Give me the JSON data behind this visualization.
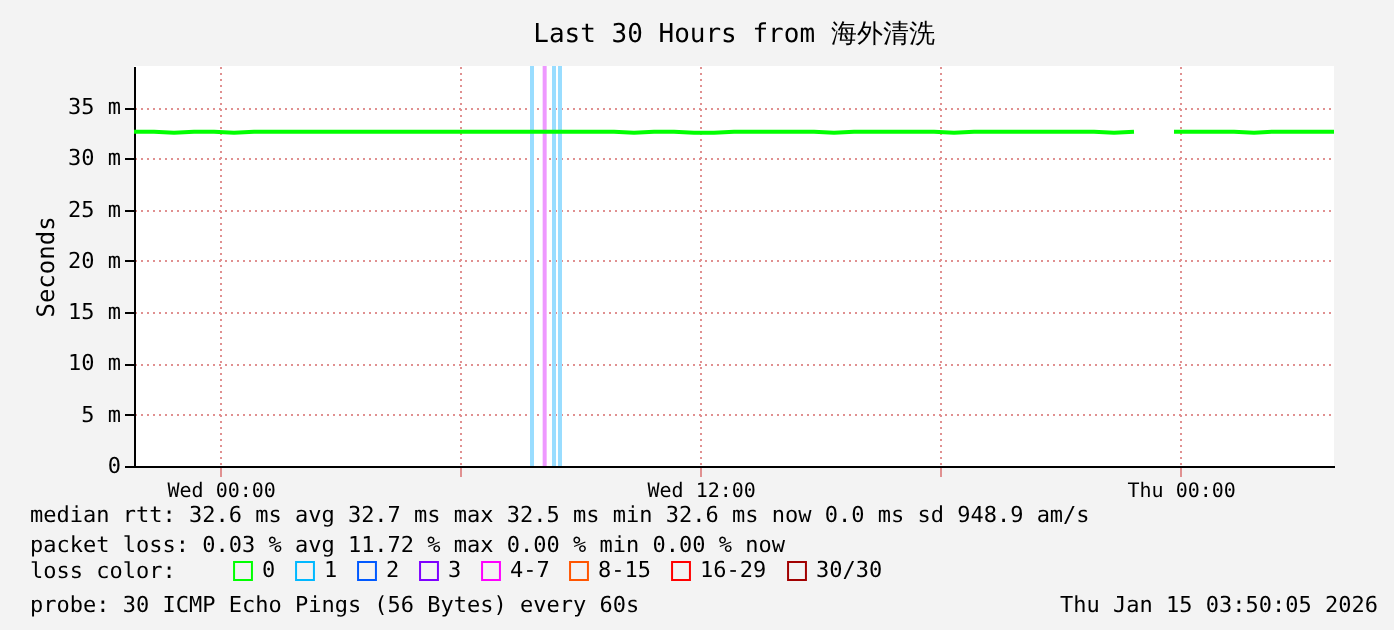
{
  "chart_data": {
    "type": "line",
    "title": "Last 30 Hours from 海外清洗",
    "ylabel": "Seconds",
    "x": [
      "2026-01-13T21:50",
      "2026-01-13T22:20",
      "2026-01-13T22:50",
      "2026-01-13T23:20",
      "2026-01-13T23:50",
      "2026-01-14T00:20",
      "2026-01-14T00:50",
      "2026-01-14T01:20",
      "2026-01-14T01:50",
      "2026-01-14T02:20",
      "2026-01-14T02:50",
      "2026-01-14T03:20",
      "2026-01-14T03:50",
      "2026-01-14T04:20",
      "2026-01-14T04:50",
      "2026-01-14T05:20",
      "2026-01-14T05:50",
      "2026-01-14T06:20",
      "2026-01-14T06:50",
      "2026-01-14T07:20",
      "2026-01-14T07:50",
      "2026-01-14T08:20",
      "2026-01-14T08:50",
      "2026-01-14T09:20",
      "2026-01-14T09:50",
      "2026-01-14T10:20",
      "2026-01-14T10:50",
      "2026-01-14T11:20",
      "2026-01-14T11:50",
      "2026-01-14T12:20",
      "2026-01-14T12:50",
      "2026-01-14T13:20",
      "2026-01-14T13:50",
      "2026-01-14T14:20",
      "2026-01-14T14:50",
      "2026-01-14T15:20",
      "2026-01-14T15:50",
      "2026-01-14T16:20",
      "2026-01-14T16:50",
      "2026-01-14T17:20",
      "2026-01-14T17:50",
      "2026-01-14T18:20",
      "2026-01-14T18:50",
      "2026-01-14T19:20",
      "2026-01-14T19:50",
      "2026-01-14T20:20",
      "2026-01-14T20:50",
      "2026-01-14T21:20",
      "2026-01-14T21:50",
      "2026-01-14T22:20",
      "2026-01-14T22:50",
      "2026-01-14T23:20",
      "2026-01-14T23:50",
      "2026-01-15T00:20",
      "2026-01-15T00:50",
      "2026-01-15T01:20",
      "2026-01-15T01:50",
      "2026-01-15T02:20",
      "2026-01-15T02:50",
      "2026-01-15T03:20",
      "2026-01-15T03:50"
    ],
    "series": [
      {
        "name": "0",
        "color": "#00ff00",
        "values": [
          32.6,
          32.6,
          32.5,
          32.6,
          32.6,
          32.5,
          32.6,
          32.6,
          32.6,
          32.6,
          32.6,
          32.6,
          32.6,
          32.6,
          32.6,
          32.6,
          32.6,
          32.6,
          32.6,
          32.6,
          32.6,
          32.6,
          32.6,
          32.6,
          32.6,
          32.5,
          32.6,
          32.6,
          32.5,
          32.5,
          32.6,
          32.6,
          32.6,
          32.6,
          32.6,
          32.5,
          32.6,
          32.6,
          32.6,
          32.6,
          32.6,
          32.5,
          32.6,
          32.6,
          32.6,
          32.6,
          32.6,
          32.6,
          32.6,
          32.5,
          32.6,
          null,
          32.6,
          32.6,
          32.6,
          32.6,
          32.5,
          32.6,
          32.6,
          32.6,
          32.6
        ]
      },
      {
        "name": "1",
        "color": "#00b8ff",
        "values": [
          null,
          null,
          null,
          null,
          null,
          null,
          null,
          null,
          null,
          null,
          null,
          null,
          null,
          null,
          null,
          null,
          null,
          null,
          null,
          null,
          null,
          null,
          null,
          null,
          null,
          null,
          null,
          null,
          null,
          null,
          null,
          null,
          null,
          null,
          null,
          null,
          null,
          null,
          null,
          null,
          null,
          null,
          null,
          null,
          null,
          null,
          null,
          null,
          null,
          null,
          null,
          null,
          null,
          null,
          null,
          null,
          null,
          null,
          null,
          null,
          null
        ]
      },
      {
        "name": "2",
        "color": "#0059ff",
        "values": [
          null,
          null,
          null,
          null,
          null,
          null,
          null,
          null,
          null,
          null,
          null,
          null,
          null,
          null,
          null,
          null,
          null,
          null,
          null,
          null,
          null,
          null,
          null,
          null,
          null,
          null,
          null,
          null,
          null,
          null,
          null,
          null,
          null,
          null,
          null,
          null,
          null,
          null,
          null,
          null,
          null,
          null,
          null,
          null,
          null,
          null,
          null,
          null,
          null,
          null,
          null,
          null,
          null,
          null,
          null,
          null,
          null,
          null,
          null,
          null,
          null
        ]
      },
      {
        "name": "3",
        "color": "#7e00ff",
        "values": [
          null,
          null,
          null,
          null,
          null,
          null,
          null,
          null,
          null,
          null,
          null,
          null,
          null,
          null,
          null,
          null,
          null,
          null,
          null,
          null,
          null,
          null,
          null,
          null,
          null,
          null,
          null,
          null,
          null,
          null,
          null,
          null,
          null,
          null,
          null,
          null,
          null,
          null,
          null,
          null,
          null,
          null,
          null,
          null,
          null,
          null,
          null,
          null,
          null,
          null,
          null,
          null,
          null,
          null,
          null,
          null,
          null,
          null,
          null,
          null,
          null
        ]
      },
      {
        "name": "4-7",
        "color": "#ff00ff",
        "values": [
          null,
          null,
          null,
          null,
          null,
          null,
          null,
          null,
          null,
          null,
          null,
          null,
          null,
          null,
          null,
          null,
          null,
          null,
          null,
          null,
          null,
          null,
          null,
          null,
          null,
          null,
          null,
          null,
          null,
          null,
          null,
          null,
          null,
          null,
          null,
          null,
          null,
          null,
          null,
          null,
          null,
          null,
          null,
          null,
          null,
          null,
          null,
          null,
          null,
          null,
          null,
          null,
          null,
          null,
          null,
          null,
          null,
          null,
          null,
          null,
          null
        ]
      },
      {
        "name": "8-15",
        "color": "#ff5500",
        "values": [
          null,
          null,
          null,
          null,
          null,
          null,
          null,
          null,
          null,
          null,
          null,
          null,
          null,
          null,
          null,
          null,
          null,
          null,
          null,
          null,
          null,
          null,
          null,
          null,
          null,
          null,
          null,
          null,
          null,
          null,
          null,
          null,
          null,
          null,
          null,
          null,
          null,
          null,
          null,
          null,
          null,
          null,
          null,
          null,
          null,
          null,
          null,
          null,
          null,
          null,
          null,
          null,
          null,
          null,
          null,
          null,
          null,
          null,
          null,
          null,
          null
        ]
      },
      {
        "name": "16-29",
        "color": "#ff0000",
        "values": [
          null,
          null,
          null,
          null,
          null,
          null,
          null,
          null,
          null,
          null,
          null,
          null,
          null,
          null,
          null,
          null,
          null,
          null,
          null,
          null,
          null,
          null,
          null,
          null,
          null,
          null,
          null,
          null,
          null,
          null,
          null,
          null,
          null,
          null,
          null,
          null,
          null,
          null,
          null,
          null,
          null,
          null,
          null,
          null,
          null,
          null,
          null,
          null,
          null,
          null,
          null,
          null,
          null,
          null,
          null,
          null,
          null,
          null,
          null,
          null,
          null
        ]
      },
      {
        "name": "30/30",
        "color": "#a10000",
        "values": [
          null,
          null,
          null,
          null,
          null,
          null,
          null,
          null,
          null,
          null,
          null,
          null,
          null,
          null,
          null,
          null,
          null,
          null,
          null,
          null,
          null,
          null,
          null,
          null,
          null,
          null,
          null,
          null,
          null,
          null,
          null,
          null,
          null,
          null,
          null,
          null,
          null,
          null,
          null,
          null,
          null,
          null,
          null,
          null,
          null,
          null,
          null,
          null,
          null,
          null,
          null,
          null,
          null,
          null,
          null,
          null,
          null,
          null,
          null,
          null,
          null
        ]
      }
    ],
    "legend_title": "loss color:",
    "legend": "bottom left",
    "ref_lines": [
      {
        "axis": "x",
        "value": "2026-01-14T07:47",
        "color": "#99ddff"
      },
      {
        "axis": "x",
        "value": "2026-01-14T08:06",
        "color": "#ee99ff"
      },
      {
        "axis": "x",
        "value": "2026-01-14T08:20",
        "color": "#99ddff"
      },
      {
        "axis": "x",
        "value": "2026-01-14T08:29",
        "color": "#99ddff"
      }
    ],
    "xlim": [
      "2026-01-13T21:50",
      "2026-01-15T03:50"
    ],
    "xticks": [
      {
        "value": "2026-01-14T00:00",
        "label": "Wed 00:00"
      },
      {
        "value": "2026-01-14T06:00",
        "label": null
      },
      {
        "value": "2026-01-14T12:00",
        "label": "Wed 12:00"
      },
      {
        "value": "2026-01-14T18:00",
        "label": null
      },
      {
        "value": "2026-01-15T00:00",
        "label": "Thu 00:00"
      }
    ],
    "ylim": [
      0,
      39
    ],
    "yticks": [
      0,
      {
        "value": 5,
        "label": "5 m"
      },
      {
        "value": 10,
        "label": "10 m"
      },
      {
        "value": 15,
        "label": "15 m"
      },
      {
        "value": 20,
        "label": "20 m"
      },
      {
        "value": 25,
        "label": "25 m"
      },
      {
        "value": 30,
        "label": "30 m"
      },
      {
        "value": 35,
        "label": "35 m"
      }
    ],
    "grid": true,
    "annotations": [
      "median rtt:  32.6 ms avg  32.7 ms max  32.5 ms min  32.6 ms now  0.0 ms sd  948.9   am/s",
      "packet loss: 0.03 % avg  11.72 % max  0.00 % min  0.00 % now",
      "probe:       30 ICMP Echo Pings (56 Bytes) every 60s",
      "Thu Jan 15 03:50:05 2026"
    ]
  }
}
